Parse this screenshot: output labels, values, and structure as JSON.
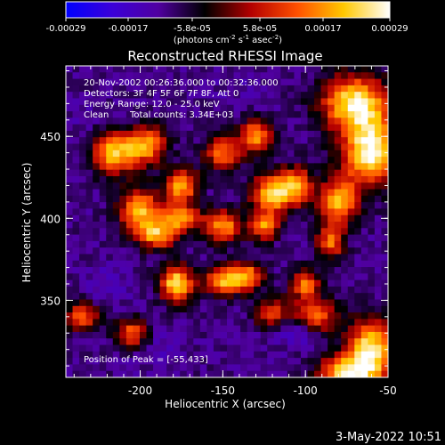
{
  "chart_data": {
    "type": "heatmap",
    "title": "Reconstructed RHESSI Image",
    "colorbar": {
      "ticks": [
        "-0.00029",
        "-0.00017",
        "-5.8e-05",
        "5.8e-05",
        "0.00017",
        "0.00029"
      ],
      "units_line1": "(photons cm",
      "units_sup1": "-2",
      "units_mid": " s",
      "units_sup2": "-1",
      "units_end": " asec",
      "units_sup3": "-2",
      "units_close": ")",
      "range": [
        -0.00029,
        0.00029
      ],
      "colormap": [
        "#0000ff",
        "#3b00d8",
        "#5000a0",
        "#000000",
        "#b40000",
        "#ff5000",
        "#ffc800",
        "#ffffff"
      ]
    },
    "xlabel": "Heliocentric X (arcsec)",
    "ylabel": "Heliocentric Y (arcsec)",
    "xlim": [
      -245,
      -50
    ],
    "ylim": [
      303,
      493
    ],
    "xticks": [
      "-200",
      "-150",
      "-100",
      "-50"
    ],
    "xtick_values": [
      -200,
      -150,
      -100,
      -50
    ],
    "yticks": [
      "350",
      "400",
      "450"
    ],
    "ytick_values": [
      350,
      400,
      450
    ],
    "annotations": {
      "line1": "20-Nov-2002 00:26:36.000 to 00:32:36.000",
      "line2": "Detectors: 3F 4F 5F 6F 7F 8F, Att 0",
      "line3": "Energy Range: 12.0 - 25.0 keV",
      "line4a": "Clean",
      "line4b": "Total counts: 3.34E+03",
      "peak": "Position of Peak = [-55,433]"
    },
    "peak": [
      -55,
      433
    ],
    "grid": false,
    "blobs": [
      {
        "x": -60,
        "y": 440,
        "v": 1.0,
        "sx": 12,
        "sy": 14
      },
      {
        "x": -70,
        "y": 470,
        "v": 0.9,
        "sx": 14,
        "sy": 12
      },
      {
        "x": -80,
        "y": 410,
        "v": 0.7,
        "sx": 8,
        "sy": 10
      },
      {
        "x": -60,
        "y": 320,
        "v": 0.9,
        "sx": 10,
        "sy": 12
      },
      {
        "x": -75,
        "y": 305,
        "v": 0.8,
        "sx": 12,
        "sy": 8
      },
      {
        "x": -95,
        "y": 340,
        "v": 0.55,
        "sx": 10,
        "sy": 8
      },
      {
        "x": -215,
        "y": 440,
        "v": 0.75,
        "sx": 10,
        "sy": 9
      },
      {
        "x": -195,
        "y": 445,
        "v": 0.55,
        "sx": 8,
        "sy": 8
      },
      {
        "x": -175,
        "y": 420,
        "v": 0.7,
        "sx": 7,
        "sy": 7
      },
      {
        "x": -150,
        "y": 440,
        "v": 0.5,
        "sx": 8,
        "sy": 7
      },
      {
        "x": -130,
        "y": 450,
        "v": 0.6,
        "sx": 7,
        "sy": 7
      },
      {
        "x": -120,
        "y": 415,
        "v": 0.7,
        "sx": 9,
        "sy": 9
      },
      {
        "x": -105,
        "y": 420,
        "v": 0.5,
        "sx": 7,
        "sy": 8
      },
      {
        "x": -175,
        "y": 400,
        "v": 0.55,
        "sx": 8,
        "sy": 6
      },
      {
        "x": -200,
        "y": 405,
        "v": 0.7,
        "sx": 9,
        "sy": 9
      },
      {
        "x": -190,
        "y": 390,
        "v": 0.6,
        "sx": 8,
        "sy": 6
      },
      {
        "x": -150,
        "y": 395,
        "v": 0.6,
        "sx": 8,
        "sy": 7
      },
      {
        "x": -125,
        "y": 395,
        "v": 0.5,
        "sx": 6,
        "sy": 6
      },
      {
        "x": -178,
        "y": 360,
        "v": 0.85,
        "sx": 7,
        "sy": 8
      },
      {
        "x": -150,
        "y": 362,
        "v": 0.65,
        "sx": 8,
        "sy": 6
      },
      {
        "x": -135,
        "y": 365,
        "v": 0.55,
        "sx": 7,
        "sy": 6
      },
      {
        "x": -120,
        "y": 340,
        "v": 0.55,
        "sx": 8,
        "sy": 7
      },
      {
        "x": -100,
        "y": 360,
        "v": 0.5,
        "sx": 6,
        "sy": 6
      },
      {
        "x": -235,
        "y": 340,
        "v": 0.45,
        "sx": 7,
        "sy": 6
      },
      {
        "x": -205,
        "y": 330,
        "v": 0.45,
        "sx": 7,
        "sy": 6
      },
      {
        "x": -85,
        "y": 385,
        "v": 0.45,
        "sx": 6,
        "sy": 7
      },
      {
        "x": -115,
        "y": 335,
        "v": -0.9,
        "sx": 10,
        "sy": 6
      },
      {
        "x": -100,
        "y": 330,
        "v": -0.7,
        "sx": 8,
        "sy": 6
      },
      {
        "x": -220,
        "y": 360,
        "v": -0.55,
        "sx": 9,
        "sy": 8
      },
      {
        "x": -190,
        "y": 320,
        "v": -0.5,
        "sx": 10,
        "sy": 8
      },
      {
        "x": -230,
        "y": 460,
        "v": -0.45,
        "sx": 10,
        "sy": 10
      },
      {
        "x": -140,
        "y": 480,
        "v": -0.45,
        "sx": 12,
        "sy": 8
      }
    ]
  },
  "footer": {
    "timestamp": "3-May-2022 10:51"
  }
}
